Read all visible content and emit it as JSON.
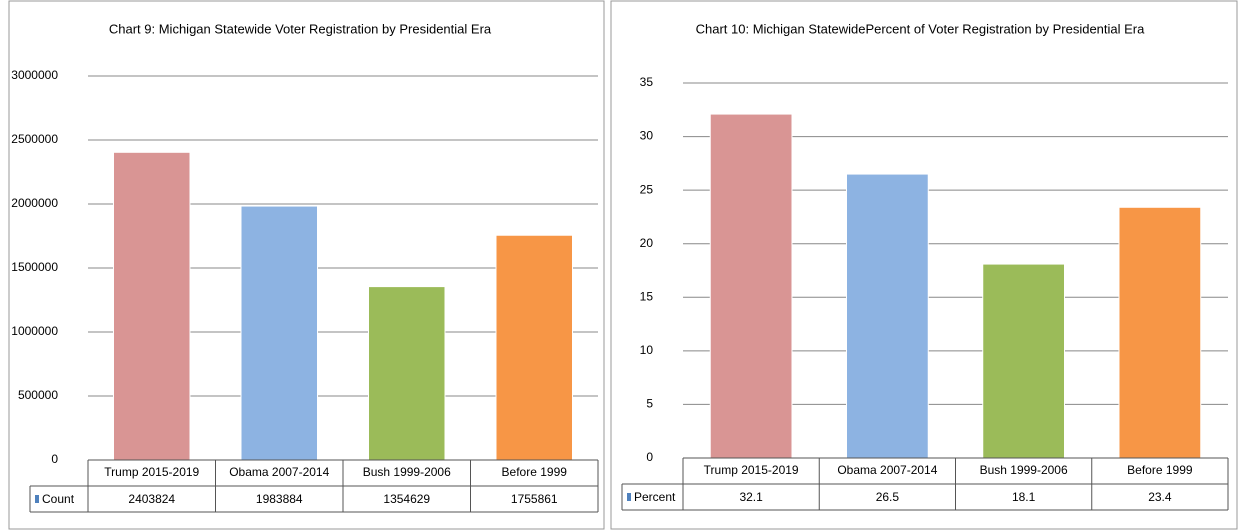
{
  "chart_data": [
    {
      "type": "bar",
      "title": "Chart 9: Michigan Statewide  Voter Registration by Presidential Era",
      "categories": [
        "Trump 2015-2019",
        "Obama 2007-2014",
        "Bush 1999-2006",
        "Before 1999"
      ],
      "series": [
        {
          "name": "Count",
          "color": "#4f81bd",
          "values": [
            2403824,
            1983884,
            1354629,
            1755861
          ]
        }
      ],
      "bar_colors": [
        "#d99594",
        "#8db3e2",
        "#9bbb59",
        "#f79646"
      ],
      "ylim": [
        0,
        3000000
      ],
      "yticks": [
        0,
        500000,
        1000000,
        1500000,
        2000000,
        2500000,
        3000000
      ],
      "grid": true
    },
    {
      "type": "bar",
      "title": "Chart 10: Michigan StatewidePercent of Voter Registration by Presidential Era",
      "categories": [
        "Trump 2015-2019",
        "Obama 2007-2014",
        "Bush 1999-2006",
        "Before 1999"
      ],
      "series": [
        {
          "name": "Percent",
          "color": "#4f81bd",
          "values": [
            32.1,
            26.5,
            18.1,
            23.4
          ]
        }
      ],
      "bar_colors": [
        "#d99594",
        "#8db3e2",
        "#9bbb59",
        "#f79646"
      ],
      "ylim": [
        0,
        35
      ],
      "yticks": [
        0,
        5,
        10,
        15,
        20,
        25,
        30,
        35
      ],
      "grid": true
    }
  ]
}
